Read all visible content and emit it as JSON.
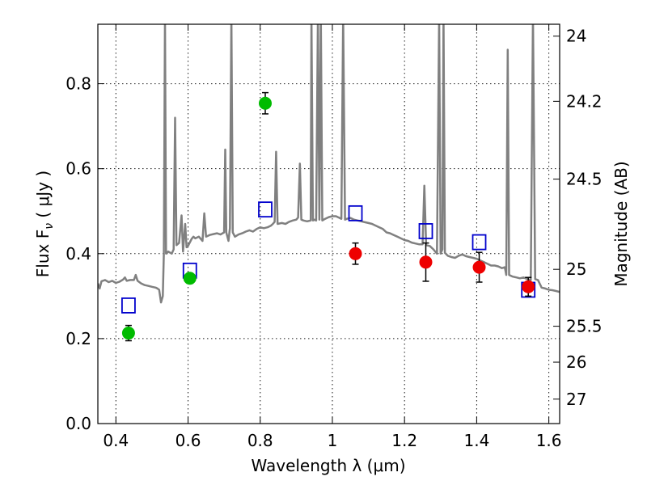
{
  "chart_data": {
    "type": "scatter",
    "xlabel": "Wavelength  λ (μm)",
    "ylabel": "Flux  F",
    "ylabel_sub": "ν",
    "ylabel_unit": "  ( μJy )",
    "ylabel_right": "Magnitude (AB)",
    "xlim": [
      0.35,
      1.63
    ],
    "ylim": [
      0.0,
      0.94
    ],
    "grid": true,
    "x_ticks": [
      {
        "value": 0.4,
        "label": "0.4"
      },
      {
        "value": 0.6,
        "label": "0.6"
      },
      {
        "value": 0.8,
        "label": "0.8"
      },
      {
        "value": 1.0,
        "label": "1"
      },
      {
        "value": 1.2,
        "label": "1.2"
      },
      {
        "value": 1.4,
        "label": "1.4"
      },
      {
        "value": 1.6,
        "label": "1.6"
      }
    ],
    "y_ticks": [
      {
        "value": 0.0,
        "label": "0.0"
      },
      {
        "value": 0.2,
        "label": "0.2"
      },
      {
        "value": 0.4,
        "label": "0.4"
      },
      {
        "value": 0.6,
        "label": "0.6"
      },
      {
        "value": 0.8,
        "label": "0.8"
      }
    ],
    "right_ticks": [
      {
        "mag": 24,
        "label": "24"
      },
      {
        "mag": 24.2,
        "label": "24.2"
      },
      {
        "mag": 24.5,
        "label": "24.5"
      },
      {
        "mag": 25,
        "label": "25"
      },
      {
        "mag": 25.5,
        "label": "25.5"
      },
      {
        "mag": 26,
        "label": "26"
      },
      {
        "mag": 27,
        "label": "27"
      }
    ],
    "colors": {
      "spectrum": "#808080",
      "green": "#00bb00",
      "red": "#ee0000",
      "model_box": "#0000cc",
      "errorbar": "#000000"
    },
    "series": [
      {
        "marker": "circle-green",
        "points": [
          {
            "x": 0.435,
            "y": 0.213,
            "err": 0.018
          },
          {
            "x": 0.605,
            "y": 0.342,
            "err": 0.012
          },
          {
            "x": 0.814,
            "y": 0.754,
            "err": 0.025
          }
        ]
      },
      {
        "marker": "circle-red",
        "points": [
          {
            "x": 1.064,
            "y": 0.4,
            "err": 0.025
          },
          {
            "x": 1.259,
            "y": 0.38,
            "err": 0.045
          },
          {
            "x": 1.407,
            "y": 0.368,
            "err": 0.035
          },
          {
            "x": 1.543,
            "y": 0.322,
            "err": 0.022
          }
        ]
      },
      {
        "marker": "square-open-blue",
        "points": [
          {
            "x": 0.435,
            "y": 0.278
          },
          {
            "x": 0.605,
            "y": 0.36
          },
          {
            "x": 0.814,
            "y": 0.504
          },
          {
            "x": 1.064,
            "y": 0.495
          },
          {
            "x": 1.259,
            "y": 0.453
          },
          {
            "x": 1.407,
            "y": 0.427
          },
          {
            "x": 1.543,
            "y": 0.315
          }
        ]
      },
      {
        "marker": "line-grey",
        "points": [
          [
            0.35,
            0.33
          ],
          [
            0.355,
            0.318
          ],
          [
            0.36,
            0.335
          ],
          [
            0.37,
            0.338
          ],
          [
            0.38,
            0.333
          ],
          [
            0.39,
            0.336
          ],
          [
            0.4,
            0.331
          ],
          [
            0.41,
            0.334
          ],
          [
            0.42,
            0.339
          ],
          [
            0.425,
            0.344
          ],
          [
            0.43,
            0.336
          ],
          [
            0.44,
            0.338
          ],
          [
            0.45,
            0.338
          ],
          [
            0.455,
            0.35
          ],
          [
            0.46,
            0.336
          ],
          [
            0.47,
            0.33
          ],
          [
            0.48,
            0.326
          ],
          [
            0.49,
            0.324
          ],
          [
            0.5,
            0.322
          ],
          [
            0.51,
            0.32
          ],
          [
            0.515,
            0.318
          ],
          [
            0.52,
            0.315
          ],
          [
            0.525,
            0.285
          ],
          [
            0.53,
            0.3
          ],
          [
            0.533,
            0.4
          ],
          [
            0.536,
            0.96
          ],
          [
            0.539,
            0.4
          ],
          [
            0.545,
            0.405
          ],
          [
            0.555,
            0.4
          ],
          [
            0.56,
            0.41
          ],
          [
            0.564,
            0.72
          ],
          [
            0.568,
            0.42
          ],
          [
            0.575,
            0.425
          ],
          [
            0.582,
            0.49
          ],
          [
            0.586,
            0.405
          ],
          [
            0.592,
            0.47
          ],
          [
            0.596,
            0.415
          ],
          [
            0.6,
            0.418
          ],
          [
            0.61,
            0.435
          ],
          [
            0.615,
            0.44
          ],
          [
            0.62,
            0.436
          ],
          [
            0.63,
            0.44
          ],
          [
            0.64,
            0.43
          ],
          [
            0.645,
            0.495
          ],
          [
            0.65,
            0.44
          ],
          [
            0.66,
            0.444
          ],
          [
            0.67,
            0.446
          ],
          [
            0.68,
            0.448
          ],
          [
            0.69,
            0.445
          ],
          [
            0.7,
            0.45
          ],
          [
            0.703,
            0.645
          ],
          [
            0.706,
            0.45
          ],
          [
            0.712,
            0.43
          ],
          [
            0.716,
            0.46
          ],
          [
            0.72,
            0.96
          ],
          [
            0.724,
            0.45
          ],
          [
            0.73,
            0.44
          ],
          [
            0.74,
            0.445
          ],
          [
            0.75,
            0.448
          ],
          [
            0.76,
            0.452
          ],
          [
            0.77,
            0.455
          ],
          [
            0.78,
            0.452
          ],
          [
            0.79,
            0.458
          ],
          [
            0.8,
            0.462
          ],
          [
            0.81,
            0.46
          ],
          [
            0.82,
            0.462
          ],
          [
            0.83,
            0.466
          ],
          [
            0.835,
            0.47
          ],
          [
            0.84,
            0.475
          ],
          [
            0.844,
            0.64
          ],
          [
            0.848,
            0.47
          ],
          [
            0.86,
            0.472
          ],
          [
            0.87,
            0.47
          ],
          [
            0.88,
            0.475
          ],
          [
            0.89,
            0.478
          ],
          [
            0.9,
            0.48
          ],
          [
            0.905,
            0.485
          ],
          [
            0.91,
            0.612
          ],
          [
            0.914,
            0.48
          ],
          [
            0.92,
            0.478
          ],
          [
            0.93,
            0.476
          ],
          [
            0.94,
            0.478
          ],
          [
            0.942,
            0.96
          ],
          [
            0.946,
            0.478
          ],
          [
            0.95,
            0.48
          ],
          [
            0.955,
            0.478
          ],
          [
            0.96,
            0.96
          ],
          [
            0.964,
            0.48
          ],
          [
            0.968,
            0.96
          ],
          [
            0.972,
            0.478
          ],
          [
            0.98,
            0.482
          ],
          [
            0.99,
            0.486
          ],
          [
            1.0,
            0.488
          ],
          [
            1.01,
            0.488
          ],
          [
            1.02,
            0.484
          ],
          [
            1.025,
            0.482
          ],
          [
            1.03,
            0.96
          ],
          [
            1.035,
            0.48
          ],
          [
            1.04,
            0.482
          ],
          [
            1.05,
            0.484
          ],
          [
            1.06,
            0.48
          ],
          [
            1.07,
            0.478
          ],
          [
            1.08,
            0.476
          ],
          [
            1.09,
            0.474
          ],
          [
            1.1,
            0.472
          ],
          [
            1.11,
            0.47
          ],
          [
            1.12,
            0.466
          ],
          [
            1.13,
            0.462
          ],
          [
            1.14,
            0.458
          ],
          [
            1.15,
            0.45
          ],
          [
            1.16,
            0.448
          ],
          [
            1.17,
            0.444
          ],
          [
            1.18,
            0.44
          ],
          [
            1.19,
            0.436
          ],
          [
            1.2,
            0.432
          ],
          [
            1.21,
            0.43
          ],
          [
            1.22,
            0.426
          ],
          [
            1.23,
            0.424
          ],
          [
            1.24,
            0.422
          ],
          [
            1.25,
            0.422
          ],
          [
            1.255,
            0.56
          ],
          [
            1.26,
            0.42
          ],
          [
            1.27,
            0.418
          ],
          [
            1.28,
            0.41
          ],
          [
            1.29,
            0.4
          ],
          [
            1.296,
            0.96
          ],
          [
            1.3,
            0.4
          ],
          [
            1.305,
            0.41
          ],
          [
            1.308,
            0.96
          ],
          [
            1.312,
            0.402
          ],
          [
            1.32,
            0.395
          ],
          [
            1.33,
            0.392
          ],
          [
            1.34,
            0.39
          ],
          [
            1.35,
            0.395
          ],
          [
            1.36,
            0.398
          ],
          [
            1.37,
            0.394
          ],
          [
            1.38,
            0.392
          ],
          [
            1.39,
            0.39
          ],
          [
            1.4,
            0.388
          ],
          [
            1.41,
            0.384
          ],
          [
            1.42,
            0.38
          ],
          [
            1.43,
            0.376
          ],
          [
            1.44,
            0.372
          ],
          [
            1.45,
            0.372
          ],
          [
            1.46,
            0.37
          ],
          [
            1.47,
            0.366
          ],
          [
            1.478,
            0.368
          ],
          [
            1.482,
            0.35
          ],
          [
            1.486,
            0.88
          ],
          [
            1.49,
            0.35
          ],
          [
            1.5,
            0.346
          ],
          [
            1.51,
            0.344
          ],
          [
            1.52,
            0.342
          ],
          [
            1.53,
            0.344
          ],
          [
            1.54,
            0.34
          ],
          [
            1.55,
            0.338
          ],
          [
            1.556,
            0.96
          ],
          [
            1.562,
            0.34
          ],
          [
            1.57,
            0.338
          ],
          [
            1.58,
            0.32
          ],
          [
            1.59,
            0.318
          ],
          [
            1.6,
            0.315
          ],
          [
            1.61,
            0.314
          ],
          [
            1.62,
            0.312
          ],
          [
            1.63,
            0.31
          ]
        ]
      }
    ]
  }
}
